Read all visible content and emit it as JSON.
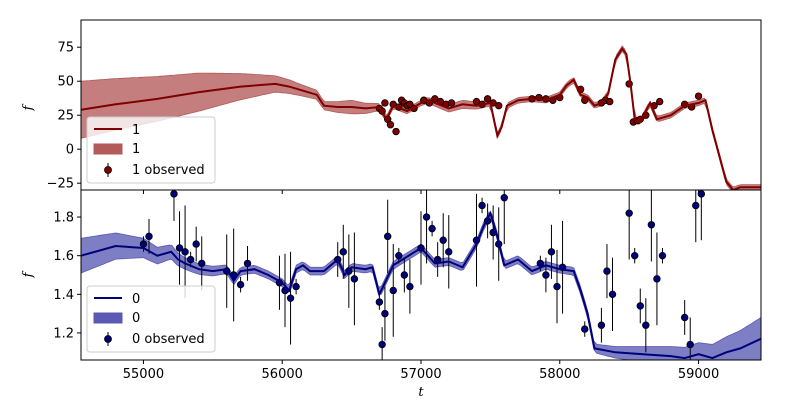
{
  "chart_data": [
    {
      "type": "line",
      "panel": "top",
      "ylabel": "f",
      "xlim": [
        54550,
        59450
      ],
      "ylim": [
        -30,
        95
      ],
      "yticks": [
        -25,
        0,
        25,
        50,
        75
      ],
      "grid": false,
      "legend_placement": "lower-left",
      "legend": [
        "1",
        "1",
        "1 observed"
      ],
      "colors": {
        "line": "#800000",
        "band": "#b35a5a",
        "marker": "#800000"
      },
      "mean": {
        "x": [
          54550,
          54800,
          55100,
          55400,
          55700,
          55950,
          56050,
          56150,
          56250,
          56300,
          56400,
          56500,
          56600,
          56700,
          56750,
          56800,
          56900,
          57000,
          57050,
          57100,
          57200,
          57300,
          57400,
          57500,
          57550,
          57580,
          57620,
          57700,
          57800,
          57900,
          58000,
          58050,
          58100,
          58150,
          58200,
          58250,
          58300,
          58350,
          58400,
          58450,
          58480,
          58510,
          58540,
          58580,
          58650,
          58700,
          58800,
          58900,
          59000,
          59050,
          59100,
          59150,
          59200,
          59250,
          59300,
          59450
        ],
        "y": [
          29,
          33,
          37,
          42,
          46,
          48,
          46,
          43,
          40,
          32,
          31,
          31,
          30,
          31,
          22,
          32,
          28,
          34,
          36,
          34,
          30,
          33,
          32,
          34,
          10,
          16,
          32,
          36,
          37,
          36,
          40,
          47,
          51,
          40,
          38,
          32,
          34,
          41,
          66,
          74,
          70,
          48,
          22,
          20,
          34,
          22,
          25,
          32,
          34,
          36,
          14,
          -5,
          -24,
          -30,
          -28,
          -28
        ]
      },
      "band_halfwidth": {
        "x": [
          54550,
          55400,
          55950,
          56150,
          56300,
          56500,
          56750,
          57000,
          57300,
          57550,
          57800,
          58100,
          58400,
          58700,
          59000,
          59100,
          59450
        ],
        "y": [
          21,
          14,
          6,
          4,
          3,
          5,
          2,
          2,
          3,
          2,
          2,
          2,
          2,
          2,
          2,
          2,
          2
        ]
      },
      "observed": {
        "x": [
          56700,
          56720,
          56740,
          56760,
          56780,
          56800,
          56820,
          56840,
          56860,
          56880,
          56900,
          56920,
          56950,
          57020,
          57060,
          57100,
          57140,
          57180,
          57220,
          57400,
          57440,
          57480,
          57520,
          57560,
          57800,
          57850,
          57900,
          57950,
          58000,
          58150,
          58180,
          58300,
          58330,
          58360,
          58500,
          58530,
          58560,
          58580,
          58620,
          58680,
          58720,
          58900,
          58950,
          59000
        ],
        "y": [
          30,
          28,
          34,
          22,
          18,
          33,
          13,
          31,
          36,
          34,
          32,
          33,
          30,
          36,
          34,
          37,
          35,
          33,
          34,
          35,
          33,
          37,
          34,
          32,
          37,
          38,
          37,
          36,
          38,
          44,
          36,
          34,
          36,
          35,
          48,
          20,
          21,
          22,
          25,
          32,
          35,
          33,
          31,
          39
        ]
      }
    },
    {
      "type": "line",
      "panel": "bottom",
      "xlabel": "t",
      "ylabel": "f",
      "xlim": [
        54550,
        59450
      ],
      "ylim": [
        1.06,
        1.94
      ],
      "xticks": [
        55000,
        56000,
        57000,
        58000,
        59000
      ],
      "yticks": [
        1.2,
        1.4,
        1.6,
        1.8
      ],
      "grid": false,
      "legend_placement": "lower-left",
      "legend": [
        "0",
        "0",
        "0 observed"
      ],
      "colors": {
        "line": "#00007a",
        "band": "#5a5ab4",
        "marker": "#00007a"
      },
      "mean": {
        "x": [
          54550,
          54800,
          55000,
          55100,
          55200,
          55250,
          55300,
          55400,
          55500,
          55600,
          55650,
          55700,
          55800,
          55900,
          56000,
          56050,
          56100,
          56150,
          56200,
          56300,
          56400,
          56450,
          56500,
          56600,
          56650,
          56700,
          56800,
          57000,
          57100,
          57200,
          57300,
          57400,
          57450,
          57500,
          57550,
          57600,
          57700,
          57800,
          57900,
          58000,
          58100,
          58150,
          58200,
          58250,
          58400,
          58600,
          58800,
          58900,
          59000,
          59100,
          59200,
          59300,
          59450
        ],
        "y": [
          1.6,
          1.65,
          1.64,
          1.6,
          1.62,
          1.58,
          1.56,
          1.53,
          1.52,
          1.53,
          1.47,
          1.52,
          1.53,
          1.5,
          1.46,
          1.42,
          1.53,
          1.55,
          1.52,
          1.52,
          1.58,
          1.5,
          1.54,
          1.53,
          1.54,
          1.4,
          1.55,
          1.64,
          1.56,
          1.57,
          1.54,
          1.66,
          1.75,
          1.82,
          1.7,
          1.55,
          1.58,
          1.52,
          1.55,
          1.53,
          1.52,
          1.42,
          1.3,
          1.12,
          1.1,
          1.09,
          1.08,
          1.07,
          1.09,
          1.07,
          1.1,
          1.12,
          1.17
        ]
      },
      "band_halfwidth": {
        "x": [
          54550,
          55000,
          55300,
          55700,
          56100,
          56500,
          57000,
          57500,
          58000,
          58200,
          58600,
          59000,
          59200,
          59450
        ],
        "y": [
          0.09,
          0.05,
          0.03,
          0.02,
          0.02,
          0.02,
          0.02,
          0.02,
          0.02,
          0.02,
          0.04,
          0.06,
          0.08,
          0.11
        ]
      },
      "observed": {
        "x": [
          55000,
          55040,
          55220,
          55260,
          55300,
          55340,
          55380,
          55420,
          55600,
          55650,
          55700,
          55750,
          55980,
          56020,
          56060,
          56100,
          56400,
          56440,
          56480,
          56520,
          56700,
          56720,
          56740,
          56760,
          56800,
          56840,
          56880,
          56920,
          57000,
          57040,
          57080,
          57120,
          57160,
          57200,
          57400,
          57440,
          57480,
          57520,
          57560,
          57600,
          57860,
          57900,
          57940,
          57980,
          58020,
          58180,
          58300,
          58340,
          58380,
          58500,
          58540,
          58580,
          58620,
          58660,
          58700,
          58740,
          58900,
          58940,
          58980,
          59020
        ],
        "y": [
          1.66,
          1.7,
          1.92,
          1.64,
          1.62,
          1.58,
          1.66,
          1.56,
          1.52,
          1.5,
          1.45,
          1.56,
          1.46,
          1.42,
          1.38,
          1.44,
          1.58,
          1.62,
          1.52,
          1.48,
          1.36,
          1.14,
          1.3,
          1.7,
          1.42,
          1.6,
          1.5,
          1.44,
          1.64,
          1.8,
          1.74,
          1.58,
          1.68,
          1.62,
          1.68,
          1.86,
          1.78,
          1.72,
          1.66,
          1.9,
          1.56,
          1.5,
          1.62,
          1.44,
          1.54,
          1.22,
          1.24,
          1.52,
          1.4,
          1.82,
          1.6,
          1.34,
          1.24,
          1.76,
          1.48,
          1.6,
          1.28,
          1.14,
          1.86,
          1.92
        ]
      }
    }
  ]
}
